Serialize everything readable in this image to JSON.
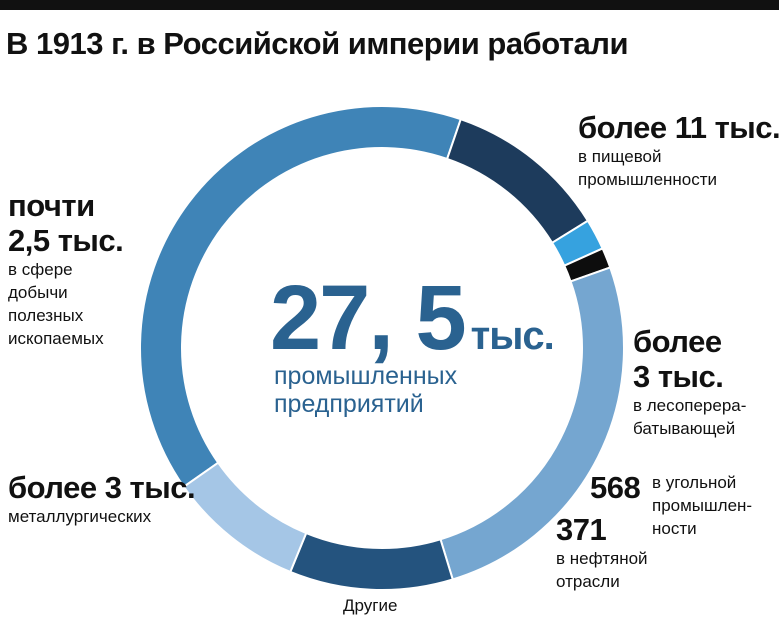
{
  "chart_data": {
    "type": "pie",
    "title": "В 1913 г. в Российской империи работали",
    "center": {
      "value": "27, 5",
      "unit": "тыс.",
      "line1": "промышленных",
      "line2": "предприятий"
    },
    "total": 27500,
    "slices": [
      {
        "key": "food",
        "value": 11000,
        "color": "#3f84b7",
        "big": [
          "более 11 тыс."
        ],
        "small": [
          "в пищевой",
          "промышленности"
        ]
      },
      {
        "key": "wood",
        "value": 3000,
        "color": "#1d3b5c",
        "big": [
          "более",
          "3 тыс."
        ],
        "small": [
          "в лесоперера-",
          "батывающей"
        ]
      },
      {
        "key": "coal",
        "value": 568,
        "color": "#36a2df",
        "big": [
          "568"
        ],
        "small": [
          "в угольной",
          "промышлен-",
          "ности"
        ]
      },
      {
        "key": "oil",
        "value": 371,
        "color": "#0d0d0d",
        "big": [
          "371"
        ],
        "small": [
          "в нефтяной",
          "отрасли"
        ]
      },
      {
        "key": "other",
        "value": 7061,
        "color": "#75a6d0",
        "big": [],
        "small": [
          "Другие"
        ]
      },
      {
        "key": "metal",
        "value": 3000,
        "color": "#24537e",
        "big": [
          "более 3 тыс."
        ],
        "small": [
          "металлургических"
        ]
      },
      {
        "key": "mining",
        "value": 2500,
        "color": "#a5c6e6",
        "big": [
          "почти",
          "2,5 тыс."
        ],
        "small": [
          "в сфере",
          "добычи",
          "полезных",
          "ископаемых"
        ]
      }
    ]
  }
}
